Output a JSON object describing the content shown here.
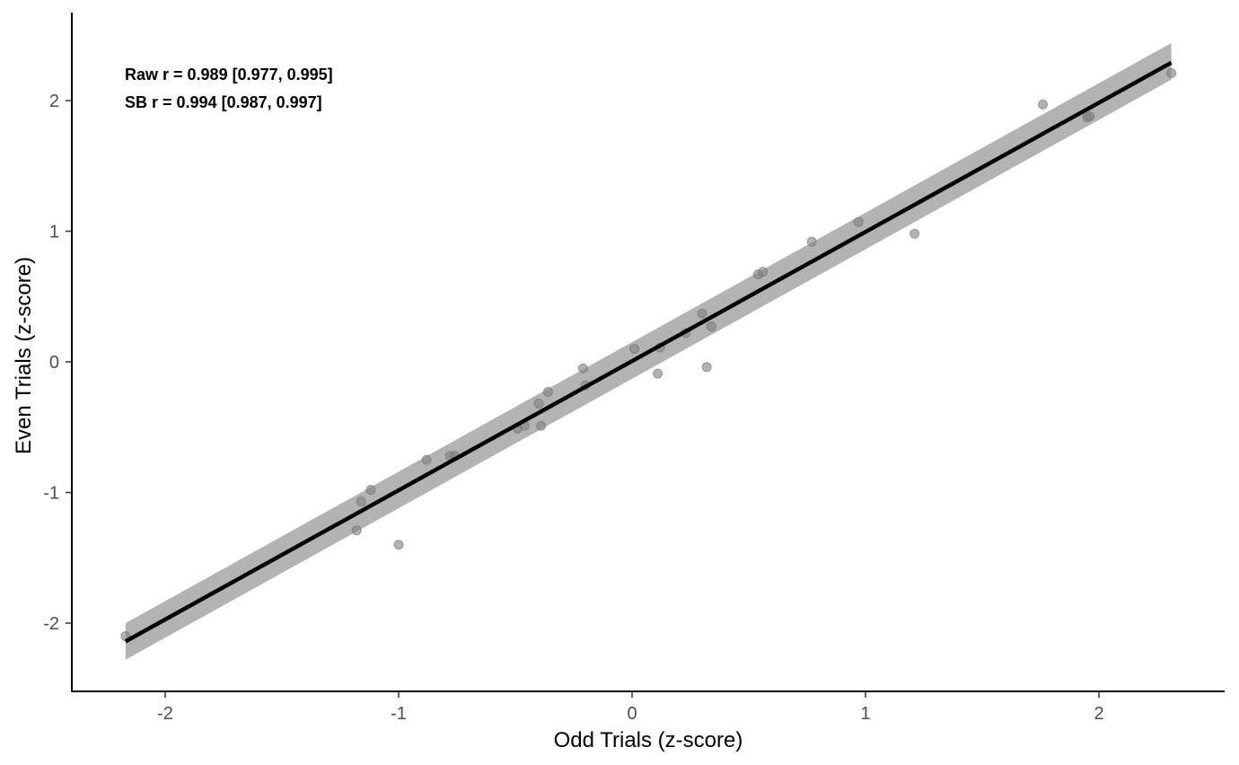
{
  "chart_data": {
    "type": "scatter",
    "xlabel": "Odd Trials (z-score)",
    "ylabel": "Even Trials (z-score)",
    "xlim": [
      -2.4,
      2.5
    ],
    "ylim": [
      -2.5,
      2.7
    ],
    "x_ticks": [
      -2,
      -1,
      0,
      1,
      2
    ],
    "y_ticks": [
      -2,
      -1,
      0,
      1,
      2
    ],
    "x_tick_labels": [
      "-2",
      "-1",
      "0",
      "1",
      "2"
    ],
    "y_tick_labels": [
      "-2",
      "-1",
      "0",
      "1",
      "2"
    ],
    "grid": false,
    "annotations": [
      "Raw r = 0.989 [0.977, 0.995]",
      "SB r = 0.994 [0.987, 0.997]"
    ],
    "points": {
      "x": [
        -2.17,
        -1.18,
        -1.16,
        -1.12,
        -1.0,
        -0.88,
        -0.78,
        -0.76,
        -0.49,
        -0.46,
        -0.4,
        -0.39,
        -0.36,
        -0.21,
        -0.2,
        0.01,
        0.11,
        0.12,
        0.23,
        0.3,
        0.32,
        0.34,
        0.54,
        0.56,
        0.77,
        0.97,
        1.21,
        1.76,
        1.95,
        1.96,
        2.31
      ],
      "y": [
        -2.1,
        -1.29,
        -1.07,
        -0.98,
        -1.4,
        -0.75,
        -0.72,
        -0.72,
        -0.51,
        -0.49,
        -0.32,
        -0.49,
        -0.23,
        -0.05,
        -0.18,
        0.1,
        -0.09,
        0.11,
        0.22,
        0.37,
        -0.04,
        0.27,
        0.67,
        0.69,
        0.92,
        1.07,
        0.98,
        1.97,
        1.87,
        1.88,
        2.21
      ],
      "color": "#808080",
      "opacity": 0.6
    },
    "fit_line": {
      "x": [
        -2.17,
        2.31
      ],
      "y": [
        -2.14,
        2.29
      ],
      "color": "#000000"
    },
    "confidence_band": {
      "x": [
        -2.17,
        2.31
      ],
      "lower": [
        -2.28,
        2.16
      ],
      "upper": [
        -2.0,
        2.44
      ],
      "color": "#b3b3b3"
    }
  }
}
